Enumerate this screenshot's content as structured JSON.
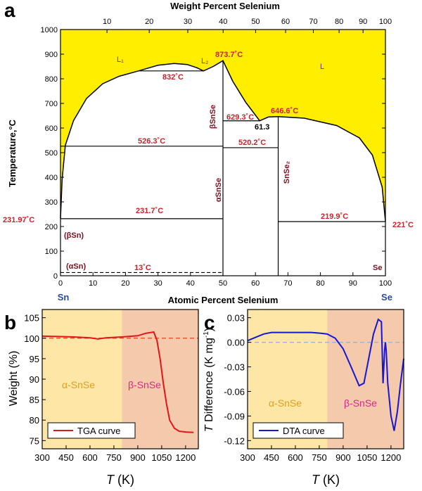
{
  "panel_a": {
    "letter": "a",
    "top_axis_title": "Weight Percent Selenium",
    "top_ticks": [
      "10",
      "20",
      "30",
      "40",
      "50",
      "60",
      "70",
      "80",
      "90",
      "100"
    ],
    "bottom_axis_title": "Atomic Percent Selenium",
    "y_axis_title": "Temperature,°C",
    "x_ticks": [
      "0",
      "10",
      "20",
      "30",
      "40",
      "50",
      "60",
      "70",
      "80",
      "90",
      "100"
    ],
    "y_ticks": [
      "0",
      "100",
      "200",
      "300",
      "400",
      "500",
      "600",
      "700",
      "800",
      "900",
      "1000"
    ],
    "left_element": "Sn",
    "right_element": "Se",
    "liquid_color": "#ffee00",
    "labels": {
      "L1": "L₁",
      "L2": "L₂",
      "L": "L",
      "t873": "873.7˚C",
      "t832": "832˚C",
      "t629": "629.3˚C",
      "t646": "646.6˚C",
      "t613": "61.3",
      "t526": "526.3˚C",
      "t520": "520.2˚C",
      "t231_left": "231.97˚C",
      "t231": "231.7˚C",
      "t219": "219.9˚C",
      "t221": "221˚C",
      "t13": "13˚C",
      "beta_snse": "βSnSe",
      "alpha_snse": "αSnSe",
      "snse2": "SnSe₂",
      "beta_sn": "(βSn)",
      "alpha_sn": "(αSn)",
      "se": "Se"
    }
  },
  "panel_b": {
    "letter": "b",
    "y_axis_title": "Weight (%)",
    "x_axis_title": "T (K)",
    "x_title_italic": "T",
    "x_title_rest": " (K)",
    "region_alpha": "α-SnSe",
    "region_beta": "β-SnSe",
    "legend": "TGA curve",
    "line_color": "#e0161b",
    "alpha_bg": "#fde6a6",
    "beta_bg": "#f5c9ab"
  },
  "panel_c": {
    "letter": "c",
    "y_axis_title": "T Difference (K mg⁻¹)",
    "y_title_italic": "T",
    "y_title_rest": " Difference (K mg",
    "y_title_sup": "-1",
    "y_title_end": ")",
    "x_axis_title": "T (K)",
    "x_title_italic": "T",
    "x_title_rest": " (K)",
    "region_alpha": "α-SnSe",
    "region_beta": "β-SnSe",
    "legend": "DTA curve",
    "line_color": "#1616d8"
  },
  "chart_data": [
    {
      "type": "line",
      "title": "",
      "xlabel": "Atomic Percent Selenium",
      "x2label": "Weight Percent Selenium",
      "ylabel": "Temperature,°C",
      "xlim": [
        0,
        100
      ],
      "ylim": [
        0,
        1000
      ],
      "x_ticks": [
        0,
        10,
        20,
        30,
        40,
        50,
        60,
        70,
        80,
        90,
        100
      ],
      "y_ticks": [
        0,
        100,
        200,
        300,
        400,
        500,
        600,
        700,
        800,
        900,
        1000
      ],
      "liquidus_left": [
        [
          0,
          231.97
        ],
        [
          0.5,
          390
        ],
        [
          1.5,
          530
        ],
        [
          4,
          630
        ],
        [
          8,
          720
        ],
        [
          13,
          780
        ],
        [
          18,
          810
        ],
        [
          24,
          832
        ],
        [
          30,
          855
        ],
        [
          35,
          862
        ],
        [
          39,
          858
        ],
        [
          42,
          845
        ],
        [
          44,
          832
        ],
        [
          47,
          850
        ],
        [
          50,
          873.7
        ],
        [
          53,
          790
        ],
        [
          57,
          705
        ],
        [
          61.3,
          629.3
        ],
        [
          64,
          645
        ],
        [
          67,
          646.6
        ]
      ],
      "liquidus_right": [
        [
          67,
          646.6
        ],
        [
          75,
          640
        ],
        [
          85,
          610
        ],
        [
          92,
          560
        ],
        [
          96,
          490
        ],
        [
          99,
          360
        ],
        [
          100,
          221
        ]
      ],
      "invariant_lines": [
        {
          "x": [
            24,
            44
          ],
          "y": 832,
          "label": "832°C"
        },
        {
          "x": [
            0,
            50
          ],
          "y": 526.3,
          "label": "526.3°C"
        },
        {
          "x": [
            50,
            67
          ],
          "y": 520.2,
          "label": "520.2°C"
        },
        {
          "x": [
            50,
            61.3
          ],
          "y": 629.3,
          "label": "629.3°C"
        },
        {
          "x": [
            0,
            50
          ],
          "y": 231.7,
          "label": "231.7°C"
        },
        {
          "x": [
            67,
            100
          ],
          "y": 219.9,
          "label": "219.9°C"
        },
        {
          "x": [
            0,
            50
          ],
          "y": 13,
          "label": "13°C",
          "style": "dashed"
        }
      ],
      "compound_lines": [
        {
          "x": 50,
          "y": [
            0,
            873.7
          ],
          "label": "SnSe"
        },
        {
          "x": 67,
          "y": [
            0,
            646.6
          ],
          "label": "SnSe2"
        }
      ]
    },
    {
      "type": "line",
      "xlabel": "T (K)",
      "ylabel": "Weight (%)",
      "xlim": [
        300,
        1280
      ],
      "ylim": [
        73,
        107
      ],
      "x_ticks": [
        300,
        450,
        600,
        750,
        900,
        1050,
        1200
      ],
      "y_ticks": [
        75,
        80,
        85,
        90,
        95,
        100,
        105
      ],
      "transition_x": 800,
      "reference_y": 100,
      "series": [
        {
          "name": "TGA curve",
          "x": [
            300,
            400,
            500,
            600,
            650,
            700,
            800,
            900,
            950,
            1000,
            1020,
            1040,
            1060,
            1080,
            1100,
            1130,
            1160,
            1200,
            1250
          ],
          "values": [
            100.5,
            100.4,
            100.3,
            100.1,
            99.8,
            100.1,
            100.3,
            100.6,
            101.2,
            101.5,
            99.5,
            95,
            89,
            84,
            80,
            78,
            77.3,
            77.1,
            77.0
          ]
        }
      ]
    },
    {
      "type": "line",
      "xlabel": "T (K)",
      "ylabel": "T Difference (K mg-1)",
      "xlim": [
        300,
        1280
      ],
      "ylim": [
        -0.13,
        0.04
      ],
      "x_ticks": [
        300,
        450,
        600,
        750,
        900,
        1050,
        1200
      ],
      "y_ticks": [
        0.03,
        0.0,
        -0.03,
        -0.06,
        -0.09,
        -0.12
      ],
      "transition_x": 800,
      "reference_y": 0,
      "series": [
        {
          "name": "DTA curve",
          "x": [
            300,
            350,
            400,
            450,
            600,
            700,
            760,
            800,
            850,
            900,
            950,
            1000,
            1030,
            1060,
            1090,
            1120,
            1140,
            1150,
            1155,
            1160,
            1165,
            1170,
            1180,
            1200,
            1220,
            1240,
            1260,
            1280
          ],
          "values": [
            0.002,
            0.006,
            0.01,
            0.012,
            0.012,
            0.012,
            0.011,
            0.01,
            0.005,
            -0.008,
            -0.03,
            -0.053,
            -0.05,
            -0.02,
            0.01,
            0.028,
            0.025,
            -0.05,
            -0.03,
            -0.01,
            0.0,
            -0.01,
            -0.05,
            -0.09,
            -0.108,
            -0.085,
            -0.05,
            -0.02
          ]
        }
      ]
    }
  ]
}
